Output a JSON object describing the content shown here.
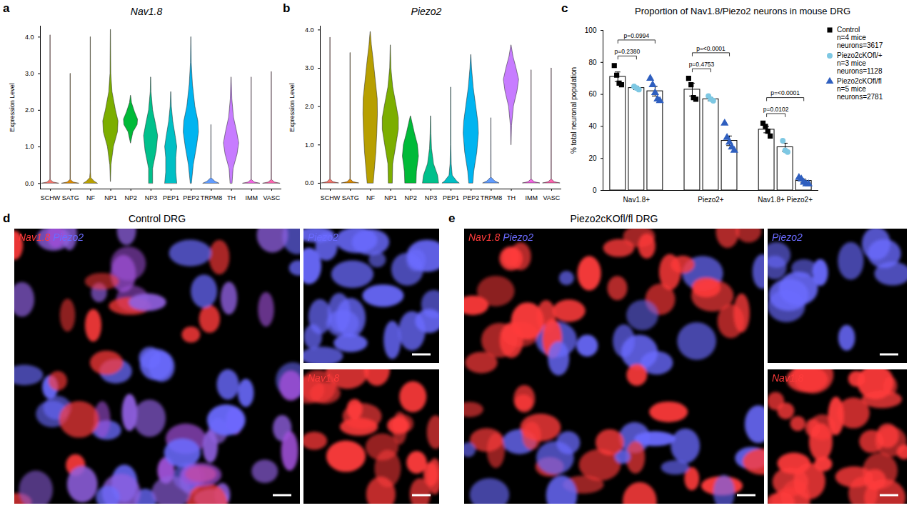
{
  "chart_data": [
    {
      "type": "violin",
      "panel_label": "a",
      "title": "Nav1.8",
      "ylabel": "Expression Level",
      "categories": [
        "SCHW",
        "SATG",
        "NF",
        "NP1",
        "NP2",
        "NP3",
        "PEP1",
        "PEP2",
        "TRPM8",
        "TH",
        "IMM",
        "VASC"
      ],
      "colors": [
        "#F8766D",
        "#DE8C00",
        "#B79F00",
        "#7CAE00",
        "#00BA38",
        "#00C08B",
        "#00BFC4",
        "#00B4F0",
        "#619CFF",
        "#C77CFF",
        "#F564E3",
        "#FF64B0"
      ],
      "ylim": [
        -0.15,
        4.3
      ],
      "yticks": [
        0,
        1,
        2,
        3,
        4
      ],
      "violins": [
        {
          "levels": [
            0,
            0.03,
            0.1,
            4.05
          ],
          "widths": [
            0.42,
            0.15,
            0.01,
            0.005
          ]
        },
        {
          "levels": [
            0,
            0.03,
            0.1,
            3.0
          ],
          "widths": [
            0.42,
            0.15,
            0.01,
            0.005
          ]
        },
        {
          "levels": [
            0,
            0.05,
            0.15,
            0.3,
            4.0
          ],
          "widths": [
            0.35,
            0.2,
            0.03,
            0.01,
            0.005
          ]
        },
        {
          "levels": [
            0.05,
            0.5,
            1.0,
            1.4,
            1.7,
            2.0,
            2.5,
            3.0,
            4.2
          ],
          "widths": [
            0.005,
            0.03,
            0.15,
            0.35,
            0.38,
            0.25,
            0.08,
            0.02,
            0.005
          ]
        },
        {
          "levels": [
            1.1,
            1.4,
            1.6,
            1.75,
            1.95,
            2.2,
            2.4
          ],
          "widths": [
            0.005,
            0.12,
            0.33,
            0.35,
            0.2,
            0.05,
            0.005
          ]
        },
        {
          "levels": [
            0,
            0.4,
            0.9,
            1.3,
            1.6,
            2.0,
            2.5,
            2.9
          ],
          "widths": [
            0.1,
            0.1,
            0.28,
            0.35,
            0.25,
            0.1,
            0.02,
            0.005
          ]
        },
        {
          "levels": [
            0,
            0.3,
            0.7,
            1.0,
            1.3,
            1.7,
            2.1,
            2.5
          ],
          "widths": [
            0.3,
            0.25,
            0.25,
            0.3,
            0.22,
            0.1,
            0.03,
            0.005
          ]
        },
        {
          "levels": [
            0,
            0.5,
            1.0,
            1.4,
            1.7,
            2.1,
            2.7,
            3.3,
            4.0
          ],
          "widths": [
            0.03,
            0.12,
            0.28,
            0.38,
            0.35,
            0.2,
            0.08,
            0.02,
            0.005
          ]
        },
        {
          "levels": [
            0,
            0.05,
            0.15,
            1.6
          ],
          "widths": [
            0.4,
            0.2,
            0.01,
            0.005
          ]
        },
        {
          "levels": [
            0,
            0.4,
            0.8,
            1.1,
            1.4,
            1.8,
            2.3,
            2.9
          ],
          "widths": [
            0.05,
            0.1,
            0.3,
            0.38,
            0.28,
            0.12,
            0.04,
            0.005
          ]
        },
        {
          "levels": [
            0,
            0.03,
            0.1,
            2.9
          ],
          "widths": [
            0.42,
            0.15,
            0.01,
            0.005
          ]
        },
        {
          "levels": [
            0,
            0.03,
            0.1,
            3.05
          ],
          "widths": [
            0.42,
            0.15,
            0.01,
            0.005
          ]
        }
      ]
    },
    {
      "type": "violin",
      "panel_label": "b",
      "title": "Piezo2",
      "ylabel": "Expression Level",
      "categories": [
        "SCHW",
        "SATG",
        "NF",
        "NP1",
        "NP2",
        "NP3",
        "PEP1",
        "PEP2",
        "TRPM8",
        "TH",
        "IMM",
        "VASC"
      ],
      "colors": [
        "#F8766D",
        "#DE8C00",
        "#B79F00",
        "#7CAE00",
        "#00BA38",
        "#00C08B",
        "#00BFC4",
        "#00B4F0",
        "#619CFF",
        "#C77CFF",
        "#F564E3",
        "#FF64B0"
      ],
      "ylim": [
        -0.15,
        4.1
      ],
      "yticks": [
        0,
        1,
        2,
        3,
        4
      ],
      "violins": [
        {
          "levels": [
            0,
            0.03,
            0.1,
            3.8
          ],
          "widths": [
            0.42,
            0.15,
            0.01,
            0.005
          ]
        },
        {
          "levels": [
            0,
            0.03,
            0.1,
            3.4
          ],
          "widths": [
            0.42,
            0.15,
            0.01,
            0.005
          ]
        },
        {
          "levels": [
            0,
            0.3,
            0.8,
            1.3,
            1.8,
            2.2,
            2.7,
            3.2,
            3.6,
            3.95
          ],
          "widths": [
            0.15,
            0.2,
            0.28,
            0.33,
            0.36,
            0.35,
            0.25,
            0.15,
            0.06,
            0.005
          ]
        },
        {
          "levels": [
            0,
            0.5,
            1.0,
            1.4,
            1.7,
            2.0,
            2.5,
            3.0,
            3.6
          ],
          "widths": [
            0.1,
            0.12,
            0.28,
            0.4,
            0.4,
            0.3,
            0.12,
            0.03,
            0.005
          ]
        },
        {
          "levels": [
            0,
            0.3,
            0.7,
            1.0,
            1.3,
            1.75
          ],
          "widths": [
            0.28,
            0.3,
            0.4,
            0.35,
            0.2,
            0.005
          ]
        },
        {
          "levels": [
            0,
            0.2,
            0.5,
            0.9,
            1.3,
            1.75
          ],
          "widths": [
            0.4,
            0.35,
            0.15,
            0.05,
            0.02,
            0.005
          ]
        },
        {
          "levels": [
            0,
            0.05,
            0.2,
            0.5,
            1.0,
            2.5
          ],
          "widths": [
            0.42,
            0.3,
            0.08,
            0.03,
            0.01,
            0.005
          ]
        },
        {
          "levels": [
            0,
            0.3,
            0.8,
            1.3,
            1.6,
            2.0,
            2.5,
            3.0,
            3.35
          ],
          "widths": [
            0.1,
            0.15,
            0.3,
            0.38,
            0.35,
            0.25,
            0.12,
            0.04,
            0.005
          ]
        },
        {
          "levels": [
            0,
            0.05,
            0.15,
            1.7
          ],
          "widths": [
            0.4,
            0.2,
            0.01,
            0.005
          ]
        },
        {
          "levels": [
            1.0,
            1.5,
            2.0,
            2.4,
            2.7,
            3.0,
            3.3,
            3.6
          ],
          "widths": [
            0.005,
            0.03,
            0.12,
            0.3,
            0.38,
            0.25,
            0.1,
            0.005
          ]
        },
        {
          "levels": [
            0,
            0.03,
            0.1,
            2.95
          ],
          "widths": [
            0.42,
            0.15,
            0.01,
            0.005
          ]
        },
        {
          "levels": [
            0,
            0.03,
            0.1,
            3.0
          ],
          "widths": [
            0.42,
            0.15,
            0.01,
            0.005
          ]
        }
      ]
    },
    {
      "type": "bar",
      "panel_label": "c",
      "title": "Proportion of Nav1.8/Piezo2 neurons in mouse DRG",
      "ylabel": "% total neuronal population",
      "categories": [
        "Nav1.8+",
        "Piezo2+",
        "Nav1.8+ Piezo2+"
      ],
      "ylim": [
        0,
        100
      ],
      "yticks": [
        0,
        20,
        40,
        60,
        80,
        100
      ],
      "series": [
        {
          "name": "Control",
          "note": [
            "n=4 mice",
            "neurons=3617"
          ],
          "color": "#000000",
          "marker": "square",
          "values": [
            71,
            63,
            38
          ],
          "errors": [
            3,
            4,
            2
          ],
          "points": [
            [
              78,
              72,
              67,
              66
            ],
            [
              70,
              66,
              58,
              57
            ],
            [
              42,
              40,
              37,
              34
            ]
          ]
        },
        {
          "name": "Piezo2cKOfl/+",
          "note": [
            "n=3 mice",
            "neurons=1128"
          ],
          "color": "#7ec8e3",
          "marker": "circle",
          "values": [
            64,
            57,
            27
          ],
          "errors": [
            1,
            1,
            2.5
          ],
          "points": [
            [
              65,
              64,
              63
            ],
            [
              59,
              57,
              56
            ],
            [
              31,
              25,
              24
            ]
          ]
        },
        {
          "name": "Piezo2cKOfl/fl",
          "note": [
            "n=5 mice",
            "neurons=2781"
          ],
          "color": "#2f5fbf",
          "marker": "triangle",
          "values": [
            62,
            31,
            6
          ],
          "errors": [
            3,
            3,
            1
          ],
          "points": [
            [
              70,
              66,
              61,
              57,
              56
            ],
            [
              42,
              33,
              30,
              27,
              25
            ],
            [
              8,
              7,
              5,
              4,
              4
            ]
          ]
        }
      ],
      "comparisons": [
        {
          "category": "Nav1.8+",
          "pair": [
            "Control",
            "Piezo2cKOfl/+"
          ],
          "label": "p=0.2380"
        },
        {
          "category": "Nav1.8+",
          "pair": [
            "Control",
            "Piezo2cKOfl/fl"
          ],
          "label": "p=0.0994"
        },
        {
          "category": "Piezo2+",
          "pair": [
            "Control",
            "Piezo2cKOfl/+"
          ],
          "label": "p=0.4753"
        },
        {
          "category": "Piezo2+",
          "pair": [
            "Control",
            "Piezo2cKOfl/fl"
          ],
          "label": "p=<0.0001"
        },
        {
          "category": "Nav1.8+ Piezo2+",
          "pair": [
            "Control",
            "Piezo2cKOfl/+"
          ],
          "label": "p=0.0102"
        },
        {
          "category": "Nav1.8+ Piezo2+",
          "pair": [
            "Control",
            "Piezo2cKOfl/fl"
          ],
          "label": "p=<0.0001"
        }
      ]
    }
  ],
  "images": [
    {
      "panel_label": "d",
      "title": "Control DRG",
      "channels": [
        {
          "name": "Nav1.8",
          "color": "#ff3b3b"
        },
        {
          "name": "Piezo2",
          "color": "#6b6bff"
        }
      ]
    },
    {
      "panel_label": "e",
      "title": "Piezo2cKOfl/fl DRG",
      "channels": [
        {
          "name": "Nav1.8",
          "color": "#ff3b3b"
        },
        {
          "name": "Piezo2",
          "color": "#6b6bff"
        }
      ]
    }
  ]
}
